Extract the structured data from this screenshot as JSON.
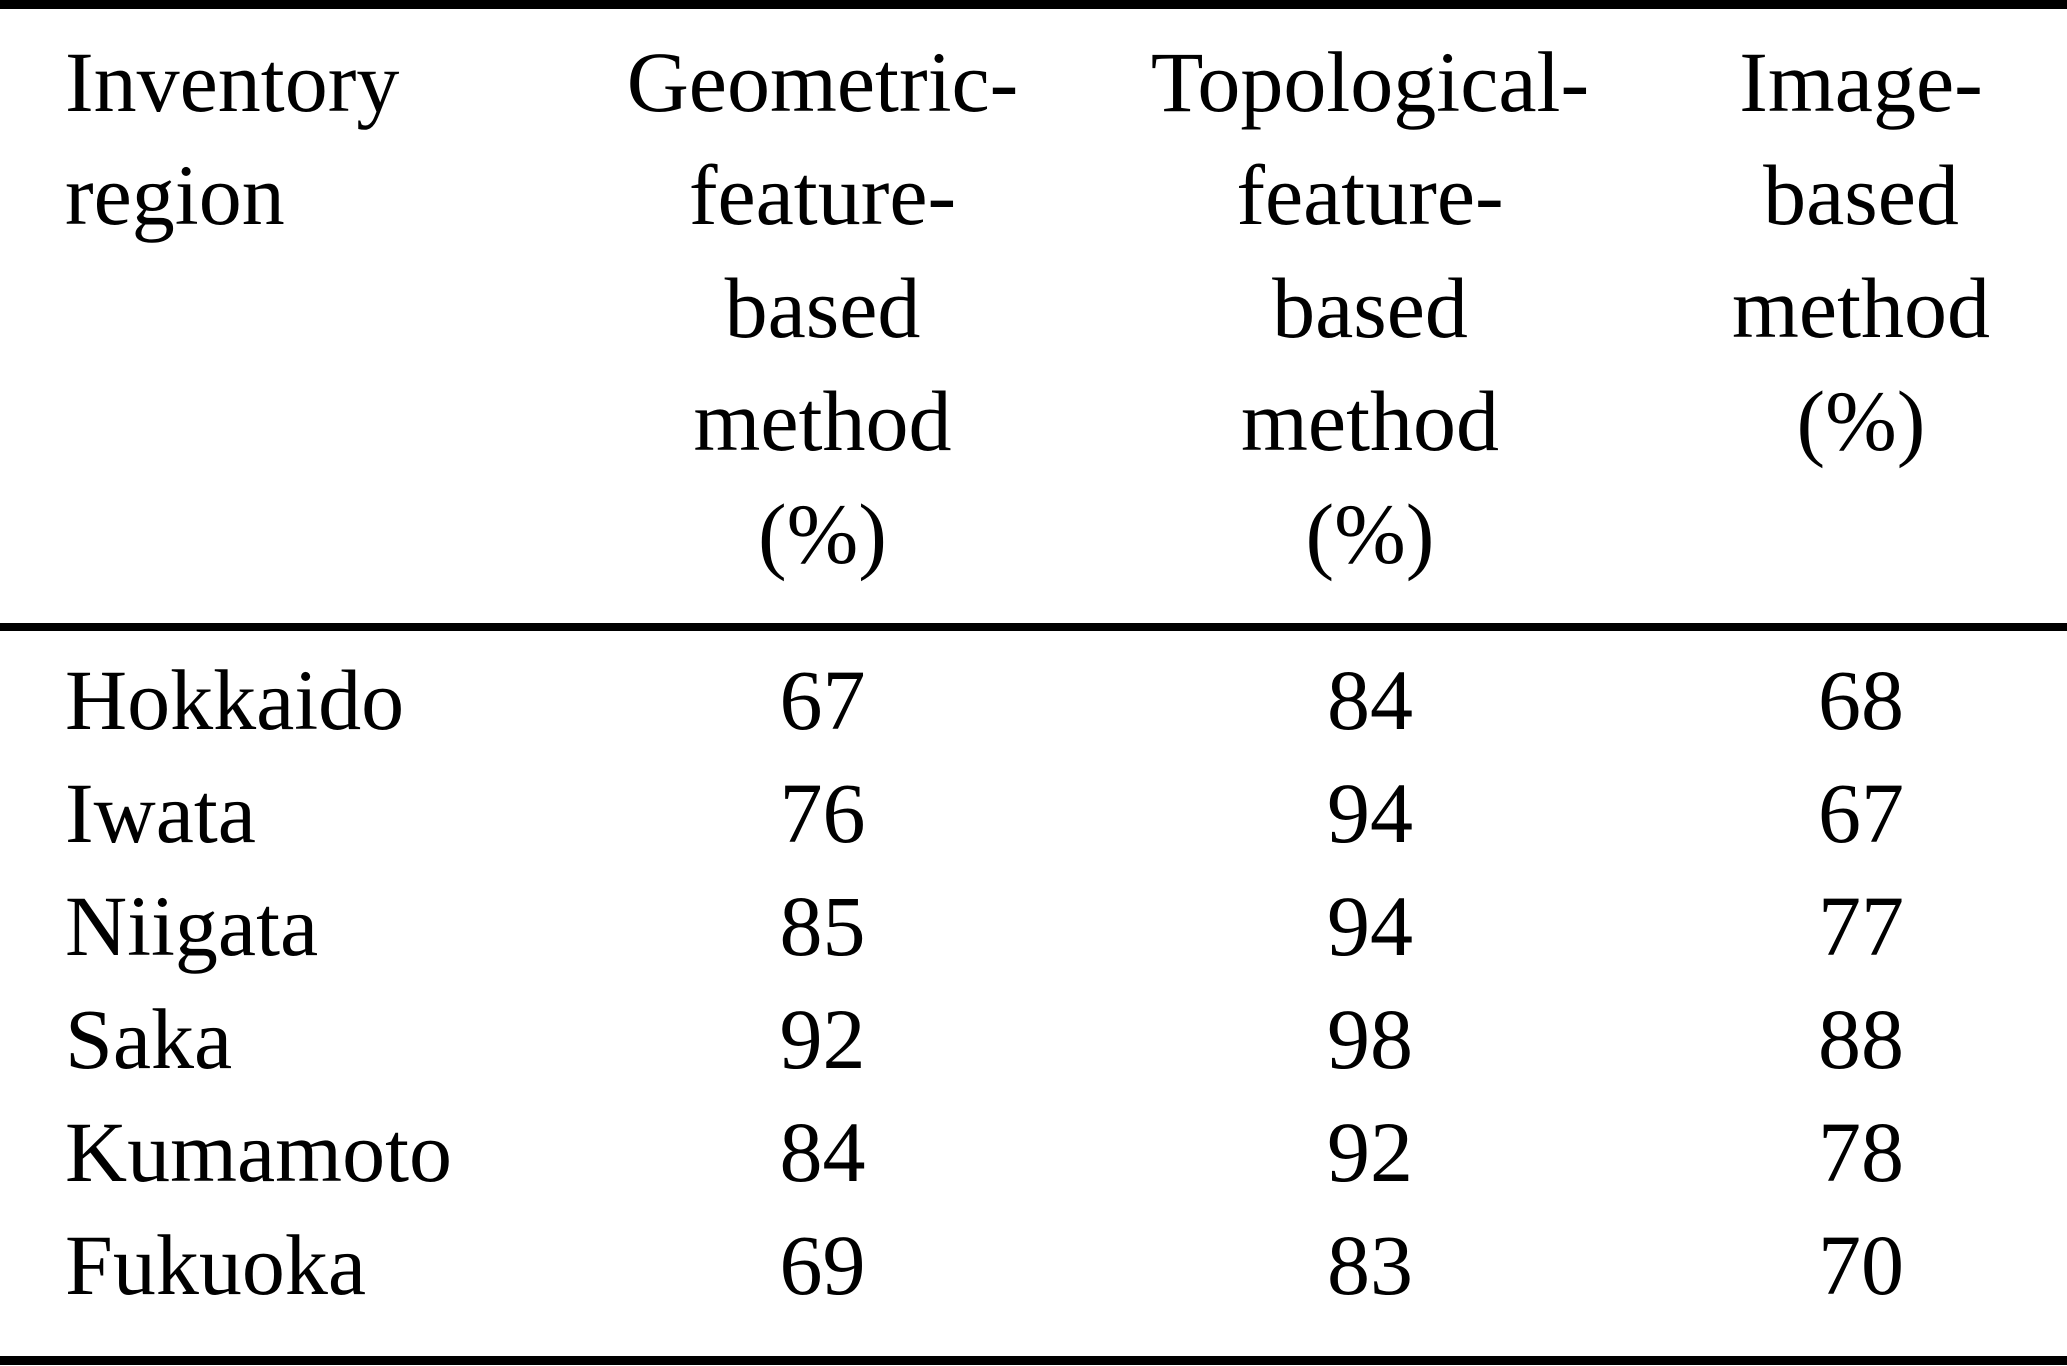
{
  "colors": {
    "text": "#000000",
    "background": "#ffffff",
    "rule": "#000000"
  },
  "table": {
    "columns": [
      {
        "label": "Inventory region",
        "lines": [
          "Inventory",
          "region"
        ]
      },
      {
        "label": "Geometric-feature-based method (%)",
        "lines": [
          "Geometric-",
          "feature-",
          "based",
          "method",
          "(%)"
        ]
      },
      {
        "label": "Topological-feature-based method (%)",
        "lines": [
          "Topological-",
          "feature-",
          "based",
          "method",
          "(%)"
        ]
      },
      {
        "label": "Image-based method (%)",
        "lines": [
          "Image-",
          "based",
          "method",
          "(%)"
        ]
      }
    ],
    "rows": [
      {
        "region": "Hokkaido",
        "geometric": "67",
        "topological": "84",
        "image": "68"
      },
      {
        "region": "Iwata",
        "geometric": "76",
        "topological": "94",
        "image": "67"
      },
      {
        "region": "Niigata",
        "geometric": "85",
        "topological": "94",
        "image": "77"
      },
      {
        "region": "Saka",
        "geometric": "92",
        "topological": "98",
        "image": "88"
      },
      {
        "region": "Kumamoto",
        "geometric": "84",
        "topological": "92",
        "image": "78"
      },
      {
        "region": "Fukuoka",
        "geometric": "69",
        "topological": "83",
        "image": "70"
      }
    ]
  },
  "chart_data": {
    "type": "table",
    "title": "",
    "columns": [
      "Inventory region",
      "Geometric-feature-based method (%)",
      "Topological-feature-based method (%)",
      "Image-based method (%)"
    ],
    "rows": [
      [
        "Hokkaido",
        67,
        84,
        68
      ],
      [
        "Iwata",
        76,
        94,
        67
      ],
      [
        "Niigata",
        85,
        94,
        77
      ],
      [
        "Saka",
        92,
        98,
        88
      ],
      [
        "Kumamoto",
        84,
        92,
        78
      ],
      [
        "Fukuoka",
        69,
        83,
        70
      ]
    ]
  }
}
